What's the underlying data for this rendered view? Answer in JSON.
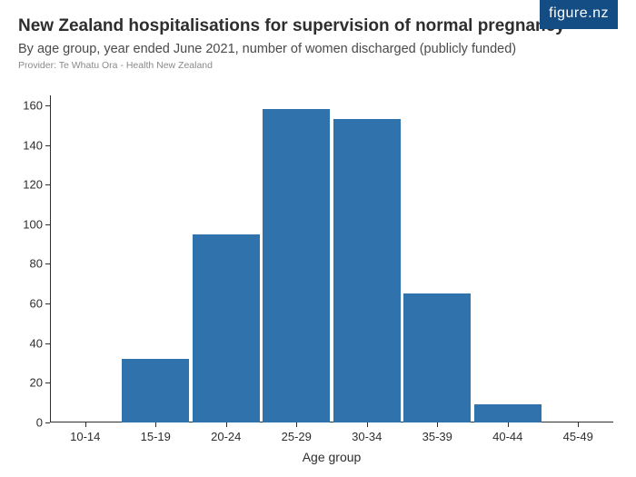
{
  "logo": {
    "text": "figure.nz"
  },
  "header": {
    "title": "New Zealand hospitalisations for supervision of normal pregnancy",
    "subtitle": "By age group, year ended June 2021, number of women discharged (publicly funded)",
    "provider": "Provider: Te Whatu Ora - Health New Zealand"
  },
  "chart": {
    "type": "bar",
    "categories": [
      "10-14",
      "15-19",
      "20-24",
      "25-29",
      "30-34",
      "35-39",
      "40-44",
      "45-49"
    ],
    "values": [
      0,
      32,
      95,
      158,
      153,
      65,
      9,
      0
    ],
    "bar_color": "#2f72ac",
    "bar_width_ratio": 0.96,
    "background_color": "#ffffff",
    "axis_color": "#2e2e2e",
    "title_fontsize": 19,
    "subtitle_fontsize": 14.5,
    "provider_fontsize": 10.5,
    "tick_fontsize": 13,
    "axis_title_fontsize": 14,
    "x_axis_title": "Age group",
    "ylim": [
      0,
      165
    ],
    "yticks": [
      0,
      20,
      40,
      60,
      80,
      100,
      120,
      140,
      160
    ]
  }
}
